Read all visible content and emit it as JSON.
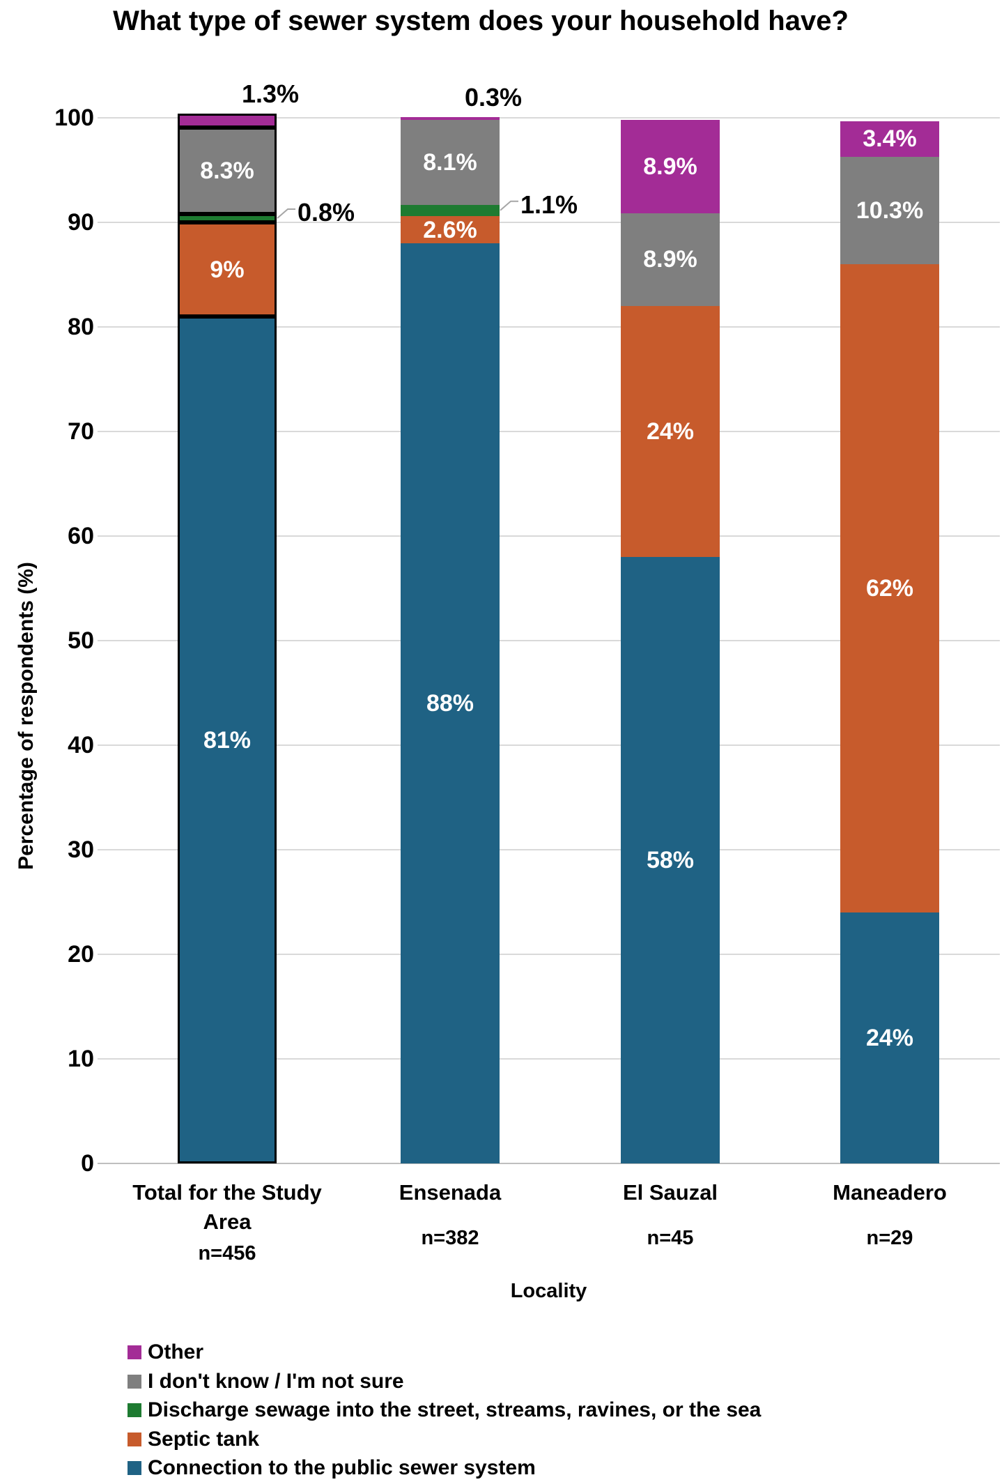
{
  "chart_data": {
    "type": "bar",
    "stacked": true,
    "title": "What type of sewer system does your household have?",
    "xlabel": "Locality",
    "ylabel": "Percentage of respondents (%)",
    "ylim": [
      0,
      100
    ],
    "yticks": [
      0,
      10,
      20,
      30,
      40,
      50,
      60,
      70,
      80,
      90,
      100
    ],
    "grid": "horizontal",
    "legend_position": "bottom-left",
    "series_colors": {
      "public-sewer": "#1f6284",
      "septic-tank": "#c75b2c",
      "discharge": "#1e7b31",
      "dont-know": "#7f7f7f",
      "other": "#a32c96"
    },
    "legend": [
      {
        "key": "other",
        "label": "Other",
        "color": "#a32c96"
      },
      {
        "key": "dont-know",
        "label": "I don't know / I'm not sure",
        "color": "#7f7f7f"
      },
      {
        "key": "discharge",
        "label": "Discharge sewage into the street, streams, ravines, or the sea",
        "color": "#1e7b31"
      },
      {
        "key": "septic-tank",
        "label": "Septic tank",
        "color": "#c75b2c"
      },
      {
        "key": "public-sewer",
        "label": "Connection to the public sewer system",
        "color": "#1f6284"
      }
    ],
    "bars": [
      {
        "key": "total",
        "category": "Total for the Study Area",
        "category_lines": [
          "Total for the Study",
          "Area"
        ],
        "n": "n=456",
        "outlined": true,
        "segments": [
          {
            "series_key": "public-sewer",
            "value": 81,
            "label": "81%",
            "label_pos": "inside"
          },
          {
            "series_key": "septic-tank",
            "value": 9,
            "label": "9%",
            "label_pos": "inside"
          },
          {
            "series_key": "discharge",
            "value": 0.8,
            "label": "0.8%",
            "label_pos": "callout-right"
          },
          {
            "series_key": "dont-know",
            "value": 8.3,
            "label": "8.3%",
            "label_pos": "inside"
          },
          {
            "series_key": "other",
            "value": 1.3,
            "label": "1.3%",
            "label_pos": "above"
          }
        ]
      },
      {
        "key": "ensenada",
        "category": "Ensenada",
        "category_lines": [
          "Ensenada"
        ],
        "n": "n=382",
        "outlined": false,
        "segments": [
          {
            "series_key": "public-sewer",
            "value": 88,
            "label": "88%",
            "label_pos": "inside"
          },
          {
            "series_key": "septic-tank",
            "value": 2.6,
            "label": "2.6%",
            "label_pos": "inside"
          },
          {
            "series_key": "discharge",
            "value": 1.1,
            "label": "1.1%",
            "label_pos": "callout-right"
          },
          {
            "series_key": "dont-know",
            "value": 8.1,
            "label": "8.1%",
            "label_pos": "inside"
          },
          {
            "series_key": "other",
            "value": 0.3,
            "label": "0.3%",
            "label_pos": "above"
          }
        ]
      },
      {
        "key": "el-sauzal",
        "category": "El Sauzal",
        "category_lines": [
          "El Sauzal"
        ],
        "n": "n=45",
        "outlined": false,
        "segments": [
          {
            "series_key": "public-sewer",
            "value": 58,
            "label": "58%",
            "label_pos": "inside"
          },
          {
            "series_key": "septic-tank",
            "value": 24,
            "label": "24%",
            "label_pos": "inside"
          },
          {
            "series_key": "dont-know",
            "value": 8.9,
            "label": "8.9%",
            "label_pos": "inside"
          },
          {
            "series_key": "other",
            "value": 8.9,
            "label": "8.9%",
            "label_pos": "inside"
          }
        ]
      },
      {
        "key": "maneadero",
        "category": "Maneadero",
        "category_lines": [
          "Maneadero"
        ],
        "n": "n=29",
        "outlined": false,
        "segments": [
          {
            "series_key": "public-sewer",
            "value": 24,
            "label": "24%",
            "label_pos": "inside"
          },
          {
            "series_key": "septic-tank",
            "value": 62,
            "label": "62%",
            "label_pos": "inside"
          },
          {
            "series_key": "dont-know",
            "value": 10.3,
            "label": "10.3%",
            "label_pos": "inside"
          },
          {
            "series_key": "other",
            "value": 3.4,
            "label": "3.4%",
            "label_pos": "inside"
          }
        ]
      }
    ]
  }
}
